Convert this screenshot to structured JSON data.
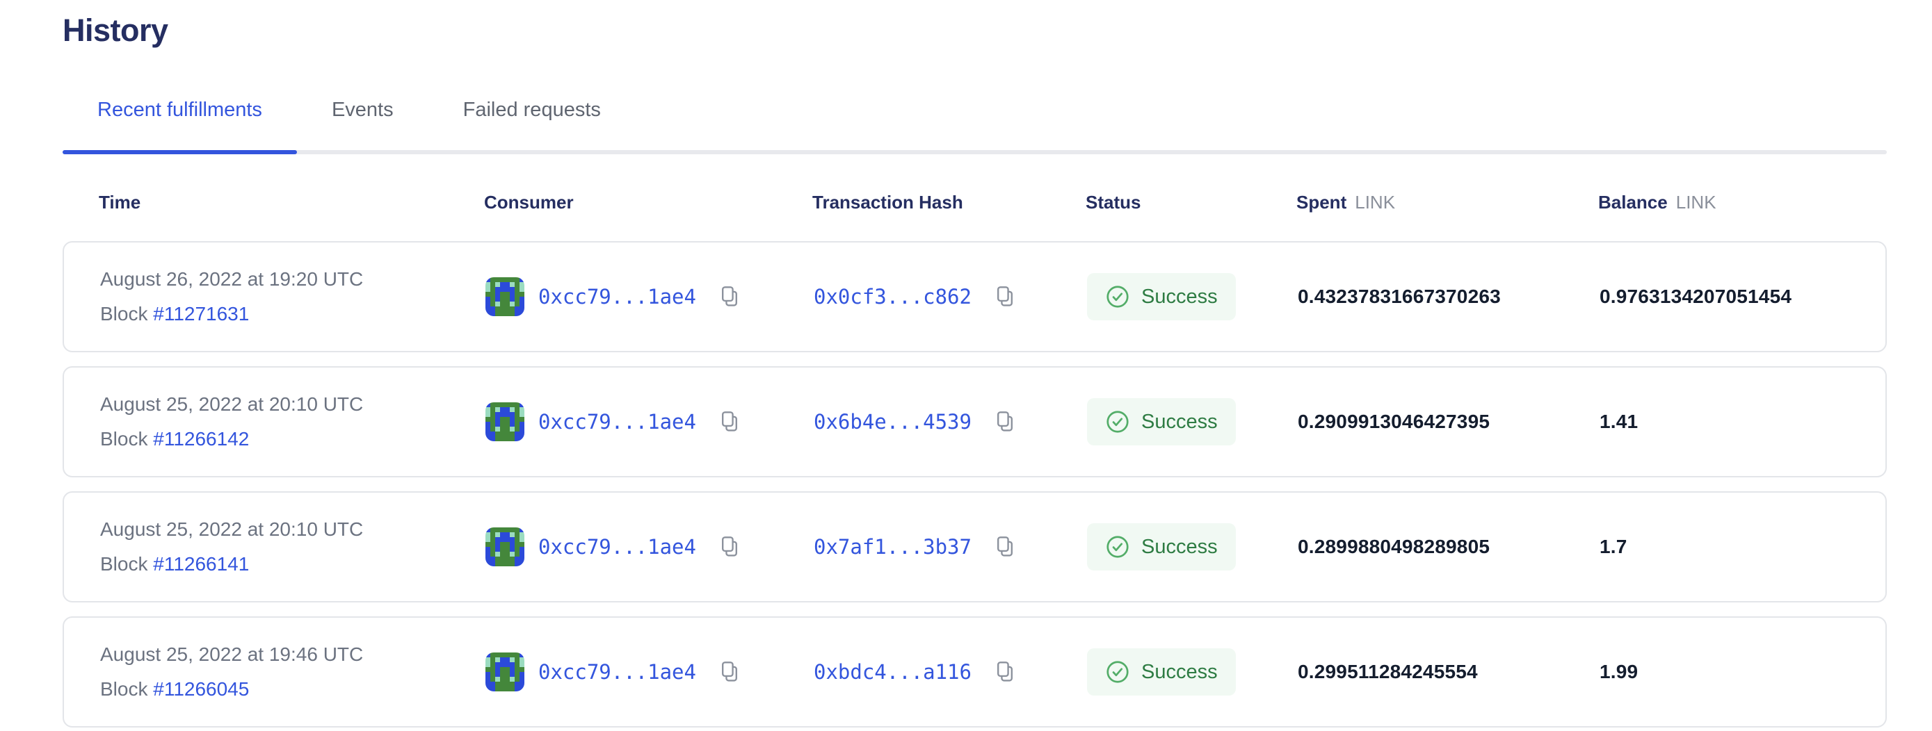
{
  "page": {
    "title": "History"
  },
  "tabs": [
    {
      "label": "Recent fulfillments",
      "active": true
    },
    {
      "label": "Events",
      "active": false
    },
    {
      "label": "Failed requests",
      "active": false
    }
  ],
  "table": {
    "columns": {
      "time": "Time",
      "consumer": "Consumer",
      "tx_hash": "Transaction Hash",
      "status": "Status",
      "spent": "Spent",
      "spent_unit": "LINK",
      "balance": "Balance",
      "balance_unit": "LINK"
    },
    "block_label": "Block",
    "rows": [
      {
        "time": "August 26, 2022 at 19:20 UTC",
        "block_number": "#11271631",
        "consumer": "0xcc79...1ae4",
        "tx_hash": "0x0cf3...c862",
        "status": "Success",
        "spent": "0.43237831667370263",
        "balance": "0.9763134207051454"
      },
      {
        "time": "August 25, 2022 at 20:10 UTC",
        "block_number": "#11266142",
        "consumer": "0xcc79...1ae4",
        "tx_hash": "0x6b4e...4539",
        "status": "Success",
        "spent": "0.2909913046427395",
        "balance": "1.41"
      },
      {
        "time": "August 25, 2022 at 20:10 UTC",
        "block_number": "#11266141",
        "consumer": "0xcc79...1ae4",
        "tx_hash": "0x7af1...3b37",
        "status": "Success",
        "spent": "0.2899880498289805",
        "balance": "1.7"
      },
      {
        "time": "August 25, 2022 at 19:46 UTC",
        "block_number": "#11266045",
        "consumer": "0xcc79...1ae4",
        "tx_hash": "0xbdc4...a116",
        "status": "Success",
        "spent": "0.299511284245554",
        "balance": "1.99"
      }
    ]
  },
  "identicon": {
    "palette": {
      "G": "#44873b",
      "B": "#2b4ad9",
      "T": "#9bdcc0"
    },
    "rows": [
      "BGGGGGGB",
      "TGTBBTGT",
      "TGBBBBGT",
      "GGBGGBGG",
      "BGBGGBGB",
      "BGTGGTGB",
      "BBGGGGBB",
      "BBGGGGBB"
    ]
  },
  "icons": {
    "copy": "copy-icon",
    "success_check": "check-circle-icon",
    "avatar": "consumer-identicon"
  },
  "colors": {
    "accent_blue": "#3355dd",
    "heading_navy": "#252e61",
    "muted_gray": "#6b7280",
    "success_green": "#2e7c43",
    "success_bg": "#f1f9f3",
    "card_border": "#e3e5e9"
  }
}
